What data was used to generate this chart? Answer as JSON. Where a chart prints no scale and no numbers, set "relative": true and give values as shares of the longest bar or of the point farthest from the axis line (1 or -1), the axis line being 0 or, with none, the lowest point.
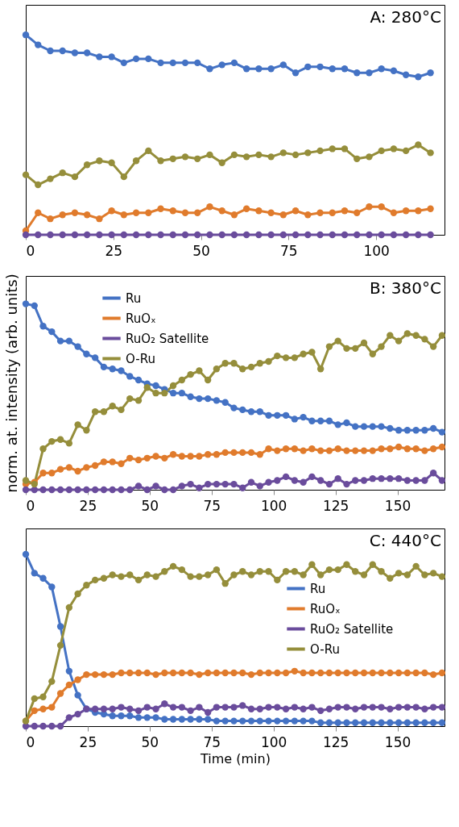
{
  "chart_data": [
    {
      "type": "line",
      "title": "A: 280°C",
      "relative": true,
      "tick_labels": "x",
      "grid": false,
      "marker": "circle",
      "line_style": "solid",
      "x": [
        0,
        3.5,
        7,
        10.5,
        14,
        17.5,
        21,
        24.5,
        28,
        31.5,
        35,
        38.5,
        42,
        45.5,
        49,
        52.5,
        56,
        59.5,
        63,
        66.5,
        70,
        73.5,
        77,
        80.5,
        84,
        87.5,
        91,
        94.5,
        98,
        101.5,
        105,
        108.5,
        112,
        115.5
      ],
      "xlim": [
        0,
        119.5
      ],
      "xticks": [
        0,
        25,
        50,
        75,
        100
      ],
      "series": [
        {
          "color": "#4472c4",
          "values": [
            1.0,
            0.95,
            0.92,
            0.92,
            0.91,
            0.91,
            0.89,
            0.89,
            0.86,
            0.88,
            0.88,
            0.86,
            0.86,
            0.86,
            0.86,
            0.83,
            0.85,
            0.86,
            0.83,
            0.83,
            0.83,
            0.85,
            0.81,
            0.84,
            0.84,
            0.83,
            0.83,
            0.81,
            0.81,
            0.83,
            0.82,
            0.8,
            0.79,
            0.81
          ]
        },
        {
          "color": "#e07b2c",
          "values": [
            0.02,
            0.11,
            0.08,
            0.1,
            0.11,
            0.1,
            0.08,
            0.12,
            0.1,
            0.11,
            0.11,
            0.13,
            0.12,
            0.11,
            0.11,
            0.14,
            0.12,
            0.1,
            0.13,
            0.12,
            0.11,
            0.1,
            0.12,
            0.1,
            0.11,
            0.11,
            0.12,
            0.11,
            0.14,
            0.14,
            0.11,
            0.12,
            0.12,
            0.13
          ]
        },
        {
          "color": "#6a4c9c",
          "values": [
            0,
            0,
            0,
            0,
            0,
            0,
            0,
            0,
            0,
            0,
            0,
            0,
            0,
            0,
            0,
            0,
            0,
            0,
            0,
            0,
            0,
            0,
            0,
            0,
            0,
            0,
            0,
            0,
            0,
            0,
            0,
            0,
            0,
            0
          ]
        },
        {
          "color": "#958e3b",
          "values": [
            0.3,
            0.25,
            0.28,
            0.31,
            0.29,
            0.35,
            0.37,
            0.36,
            0.29,
            0.37,
            0.42,
            0.37,
            0.38,
            0.39,
            0.38,
            0.4,
            0.36,
            0.4,
            0.39,
            0.4,
            0.39,
            0.41,
            0.4,
            0.41,
            0.42,
            0.43,
            0.43,
            0.38,
            0.39,
            0.42,
            0.43,
            0.42,
            0.45,
            0.41
          ]
        }
      ]
    },
    {
      "type": "line",
      "title": "B: 380°C",
      "ylabel": "norm. at. intensity (arb. units)",
      "relative": true,
      "tick_labels": "x",
      "grid": false,
      "marker": "circle",
      "line_style": "solid",
      "legend": "top left",
      "x": [
        0,
        3.5,
        7,
        10.5,
        14,
        17.5,
        21,
        24.5,
        28,
        31.5,
        35,
        38.5,
        42,
        45.5,
        49,
        52.5,
        56,
        59.5,
        63,
        66.5,
        70,
        73.5,
        77,
        80.5,
        84,
        87.5,
        91,
        94.5,
        98,
        101.5,
        105,
        108.5,
        112,
        115.5,
        119,
        122.5,
        126,
        129.5,
        133,
        136.5,
        140,
        143.5,
        147,
        150.5,
        154,
        157.5,
        161,
        164.5,
        168
      ],
      "xlim": [
        0,
        169
      ],
      "xticks": [
        0,
        25,
        50,
        75,
        100,
        125,
        150
      ],
      "series": [
        {
          "name": "Ru",
          "color": "#4472c4",
          "values": [
            1.0,
            0.99,
            0.88,
            0.85,
            0.8,
            0.8,
            0.77,
            0.73,
            0.71,
            0.66,
            0.65,
            0.64,
            0.61,
            0.59,
            0.57,
            0.56,
            0.54,
            0.52,
            0.52,
            0.5,
            0.49,
            0.49,
            0.48,
            0.47,
            0.44,
            0.43,
            0.42,
            0.42,
            0.4,
            0.4,
            0.4,
            0.38,
            0.39,
            0.37,
            0.37,
            0.37,
            0.35,
            0.36,
            0.34,
            0.34,
            0.34,
            0.34,
            0.33,
            0.32,
            0.32,
            0.32,
            0.32,
            0.33,
            0.31
          ]
        },
        {
          "name": "RuOₓ",
          "color": "#e07b2c",
          "values": [
            0.03,
            0.04,
            0.09,
            0.09,
            0.11,
            0.12,
            0.1,
            0.12,
            0.13,
            0.15,
            0.15,
            0.14,
            0.17,
            0.16,
            0.17,
            0.18,
            0.17,
            0.19,
            0.18,
            0.18,
            0.18,
            0.19,
            0.19,
            0.2,
            0.2,
            0.2,
            0.2,
            0.19,
            0.22,
            0.21,
            0.22,
            0.22,
            0.21,
            0.22,
            0.21,
            0.21,
            0.22,
            0.21,
            0.21,
            0.21,
            0.21,
            0.22,
            0.22,
            0.23,
            0.22,
            0.22,
            0.21,
            0.22,
            0.23
          ]
        },
        {
          "name": "RuO₂ Satellite",
          "color": "#6a4c9c",
          "values": [
            0,
            0,
            0,
            0,
            0,
            0,
            0,
            0,
            0,
            0,
            0,
            0,
            0,
            0.02,
            0,
            0.02,
            0,
            0,
            0.02,
            0.03,
            0.01,
            0.03,
            0.03,
            0.03,
            0.03,
            0.01,
            0.04,
            0.02,
            0.04,
            0.05,
            0.07,
            0.05,
            0.04,
            0.07,
            0.05,
            0.03,
            0.06,
            0.03,
            0.05,
            0.05,
            0.06,
            0.06,
            0.06,
            0.06,
            0.05,
            0.05,
            0.05,
            0.09,
            0.05
          ]
        },
        {
          "name": "O-Ru",
          "color": "#958e3b",
          "values": [
            0.05,
            0.03,
            0.22,
            0.26,
            0.27,
            0.25,
            0.35,
            0.32,
            0.42,
            0.42,
            0.45,
            0.43,
            0.49,
            0.48,
            0.55,
            0.52,
            0.52,
            0.56,
            0.59,
            0.62,
            0.64,
            0.59,
            0.65,
            0.68,
            0.68,
            0.65,
            0.66,
            0.68,
            0.69,
            0.72,
            0.71,
            0.71,
            0.73,
            0.74,
            0.65,
            0.77,
            0.8,
            0.76,
            0.76,
            0.79,
            0.73,
            0.77,
            0.83,
            0.8,
            0.84,
            0.83,
            0.81,
            0.77,
            0.83
          ]
        }
      ]
    },
    {
      "type": "line",
      "title": "C: 440°C",
      "xlabel": "Time (min)",
      "relative": true,
      "tick_labels": "x",
      "grid": false,
      "marker": "circle",
      "line_style": "solid",
      "legend": "right",
      "x": [
        0,
        3.5,
        7,
        10.5,
        14,
        17.5,
        21,
        24.5,
        28,
        31.5,
        35,
        38.5,
        42,
        45.5,
        49,
        52.5,
        56,
        59.5,
        63,
        66.5,
        70,
        73.5,
        77,
        80.5,
        84,
        87.5,
        91,
        94.5,
        98,
        101.5,
        105,
        108.5,
        112,
        115.5,
        119,
        122.5,
        126,
        129.5,
        133,
        136.5,
        140,
        143.5,
        147,
        150.5,
        154,
        157.5,
        161,
        164.5,
        168
      ],
      "xlim": [
        0,
        169
      ],
      "xticks": [
        0,
        25,
        50,
        75,
        100,
        125,
        150
      ],
      "series": [
        {
          "name": "Ru",
          "color": "#4472c4",
          "values": [
            1.0,
            0.89,
            0.86,
            0.81,
            0.58,
            0.32,
            0.18,
            0.1,
            0.08,
            0.07,
            0.06,
            0.06,
            0.06,
            0.05,
            0.05,
            0.05,
            0.04,
            0.04,
            0.04,
            0.04,
            0.04,
            0.04,
            0.03,
            0.03,
            0.03,
            0.03,
            0.03,
            0.03,
            0.03,
            0.03,
            0.03,
            0.03,
            0.03,
            0.03,
            0.02,
            0.02,
            0.02,
            0.02,
            0.02,
            0.02,
            0.02,
            0.02,
            0.02,
            0.02,
            0.02,
            0.02,
            0.02,
            0.02,
            0.02
          ]
        },
        {
          "name": "RuOₓ",
          "color": "#e07b2c",
          "values": [
            0.03,
            0.09,
            0.1,
            0.11,
            0.19,
            0.24,
            0.27,
            0.3,
            0.3,
            0.3,
            0.3,
            0.31,
            0.31,
            0.31,
            0.31,
            0.3,
            0.31,
            0.31,
            0.31,
            0.31,
            0.3,
            0.31,
            0.31,
            0.31,
            0.31,
            0.31,
            0.3,
            0.31,
            0.31,
            0.31,
            0.31,
            0.32,
            0.31,
            0.31,
            0.31,
            0.31,
            0.31,
            0.31,
            0.31,
            0.31,
            0.31,
            0.31,
            0.31,
            0.31,
            0.31,
            0.31,
            0.31,
            0.3,
            0.31
          ]
        },
        {
          "name": "RuO₂ Satellite",
          "color": "#6a4c9c",
          "values": [
            0,
            0,
            0,
            0,
            0,
            0.05,
            0.07,
            0.1,
            0.1,
            0.1,
            0.1,
            0.11,
            0.1,
            0.09,
            0.11,
            0.1,
            0.13,
            0.11,
            0.11,
            0.09,
            0.11,
            0.08,
            0.11,
            0.11,
            0.11,
            0.12,
            0.1,
            0.1,
            0.11,
            0.11,
            0.1,
            0.11,
            0.1,
            0.11,
            0.09,
            0.1,
            0.11,
            0.11,
            0.1,
            0.11,
            0.11,
            0.11,
            0.1,
            0.11,
            0.11,
            0.11,
            0.1,
            0.11,
            0.11
          ]
        },
        {
          "name": "O-Ru",
          "color": "#958e3b",
          "values": [
            0.03,
            0.16,
            0.17,
            0.26,
            0.47,
            0.69,
            0.77,
            0.82,
            0.85,
            0.86,
            0.88,
            0.87,
            0.88,
            0.85,
            0.88,
            0.87,
            0.9,
            0.93,
            0.91,
            0.87,
            0.87,
            0.88,
            0.91,
            0.83,
            0.88,
            0.9,
            0.88,
            0.9,
            0.9,
            0.85,
            0.9,
            0.9,
            0.88,
            0.94,
            0.88,
            0.91,
            0.91,
            0.94,
            0.9,
            0.88,
            0.94,
            0.9,
            0.86,
            0.89,
            0.88,
            0.93,
            0.88,
            0.89,
            0.87
          ]
        }
      ]
    }
  ]
}
